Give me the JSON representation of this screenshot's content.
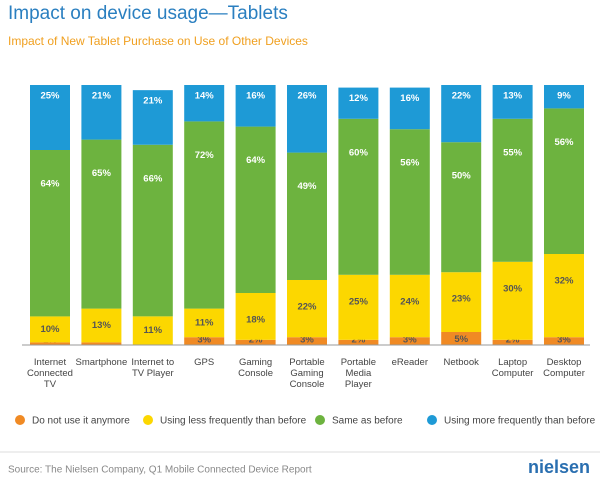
{
  "chart_data": {
    "type": "stacked_bar",
    "title": "Impact on device usage—Tablets",
    "subtitle": "Impact of New Tablet Purchase on Use of Other Devices",
    "source": "Source: The Nielsen Company, Q1 Mobile Connected Device Report",
    "logo": "nielsen",
    "categories": [
      "Internet Connected TV",
      "Smartphone",
      "Internet to TV Player",
      "GPS",
      "Gaming Console",
      "Portable Gaming Console",
      "Portable Media Player",
      "eReader",
      "Netbook",
      "Laptop Computer",
      "Desktop Computer"
    ],
    "ylim": [
      0,
      100
    ],
    "series": [
      {
        "name": "Do not use it anymore",
        "color": "#f08a24",
        "values": [
          1,
          1,
          0.02,
          3,
          2,
          3,
          2,
          3,
          5,
          2,
          3
        ],
        "value_labels": [
          "1%",
          null,
          "0.02%",
          "3%",
          "2%",
          "3%",
          "2%",
          "3%",
          "5%",
          "2%",
          "3%"
        ]
      },
      {
        "name": "Using less frequently than before",
        "color": "#fcd700",
        "values": [
          10,
          13,
          11,
          11,
          18,
          22,
          25,
          24,
          23,
          30,
          32
        ],
        "value_labels": [
          "10%",
          "13%",
          "11%",
          "11%",
          "18%",
          "22%",
          "25%",
          "24%",
          "23%",
          "30%",
          "32%"
        ]
      },
      {
        "name": "Same as before",
        "color": "#6db33f",
        "values": [
          64,
          65,
          66,
          72,
          64,
          49,
          60,
          56,
          50,
          55,
          56
        ],
        "value_labels": [
          "64%",
          "65%",
          "66%",
          "72%",
          "64%",
          "49%",
          "60%",
          "56%",
          "50%",
          "55%",
          "56%"
        ]
      },
      {
        "name": "Using more frequently than before",
        "color": "#1e9ad6",
        "values": [
          25,
          21,
          21,
          14,
          16,
          26,
          12,
          16,
          22,
          13,
          9
        ],
        "value_labels": [
          "25%",
          "21%",
          "21%",
          "14%",
          "16%",
          "26%",
          "12%",
          "16%",
          "22%",
          "13%",
          "9%"
        ]
      }
    ]
  }
}
